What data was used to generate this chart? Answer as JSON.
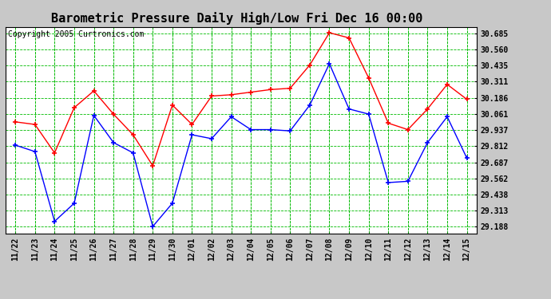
{
  "title": "Barometric Pressure Daily High/Low Fri Dec 16 00:00",
  "copyright": "Copyright 2005 Curtronics.com",
  "x_labels": [
    "11/22",
    "11/23",
    "11/24",
    "11/25",
    "11/26",
    "11/27",
    "11/28",
    "11/29",
    "11/30",
    "12/01",
    "12/02",
    "12/03",
    "12/04",
    "12/05",
    "12/06",
    "12/07",
    "12/08",
    "12/09",
    "12/10",
    "12/11",
    "12/12",
    "12/13",
    "12/14",
    "12/15"
  ],
  "high_values": [
    30.0,
    29.98,
    29.76,
    30.11,
    30.24,
    30.06,
    29.9,
    29.66,
    30.13,
    29.98,
    30.2,
    30.21,
    30.23,
    30.25,
    30.26,
    30.44,
    30.69,
    30.65,
    30.34,
    29.99,
    29.94,
    30.1,
    30.29,
    30.175
  ],
  "low_values": [
    29.82,
    29.77,
    29.23,
    29.37,
    30.05,
    29.84,
    29.76,
    29.19,
    29.37,
    29.9,
    29.87,
    30.04,
    29.94,
    29.94,
    29.93,
    30.13,
    30.45,
    30.1,
    30.06,
    29.53,
    29.54,
    29.84,
    30.04,
    29.72
  ],
  "high_color": "#ff0000",
  "low_color": "#0000ff",
  "bg_color": "#c8c8c8",
  "plot_bg_color": "#ffffff",
  "grid_color": "#00bb00",
  "yticks": [
    29.188,
    29.313,
    29.438,
    29.562,
    29.687,
    29.812,
    29.937,
    30.061,
    30.186,
    30.311,
    30.435,
    30.56,
    30.685
  ],
  "ylim_min": 29.138,
  "ylim_max": 30.735,
  "title_fontsize": 11,
  "copyright_fontsize": 7,
  "tick_fontsize": 7,
  "ytick_fontsize": 7
}
